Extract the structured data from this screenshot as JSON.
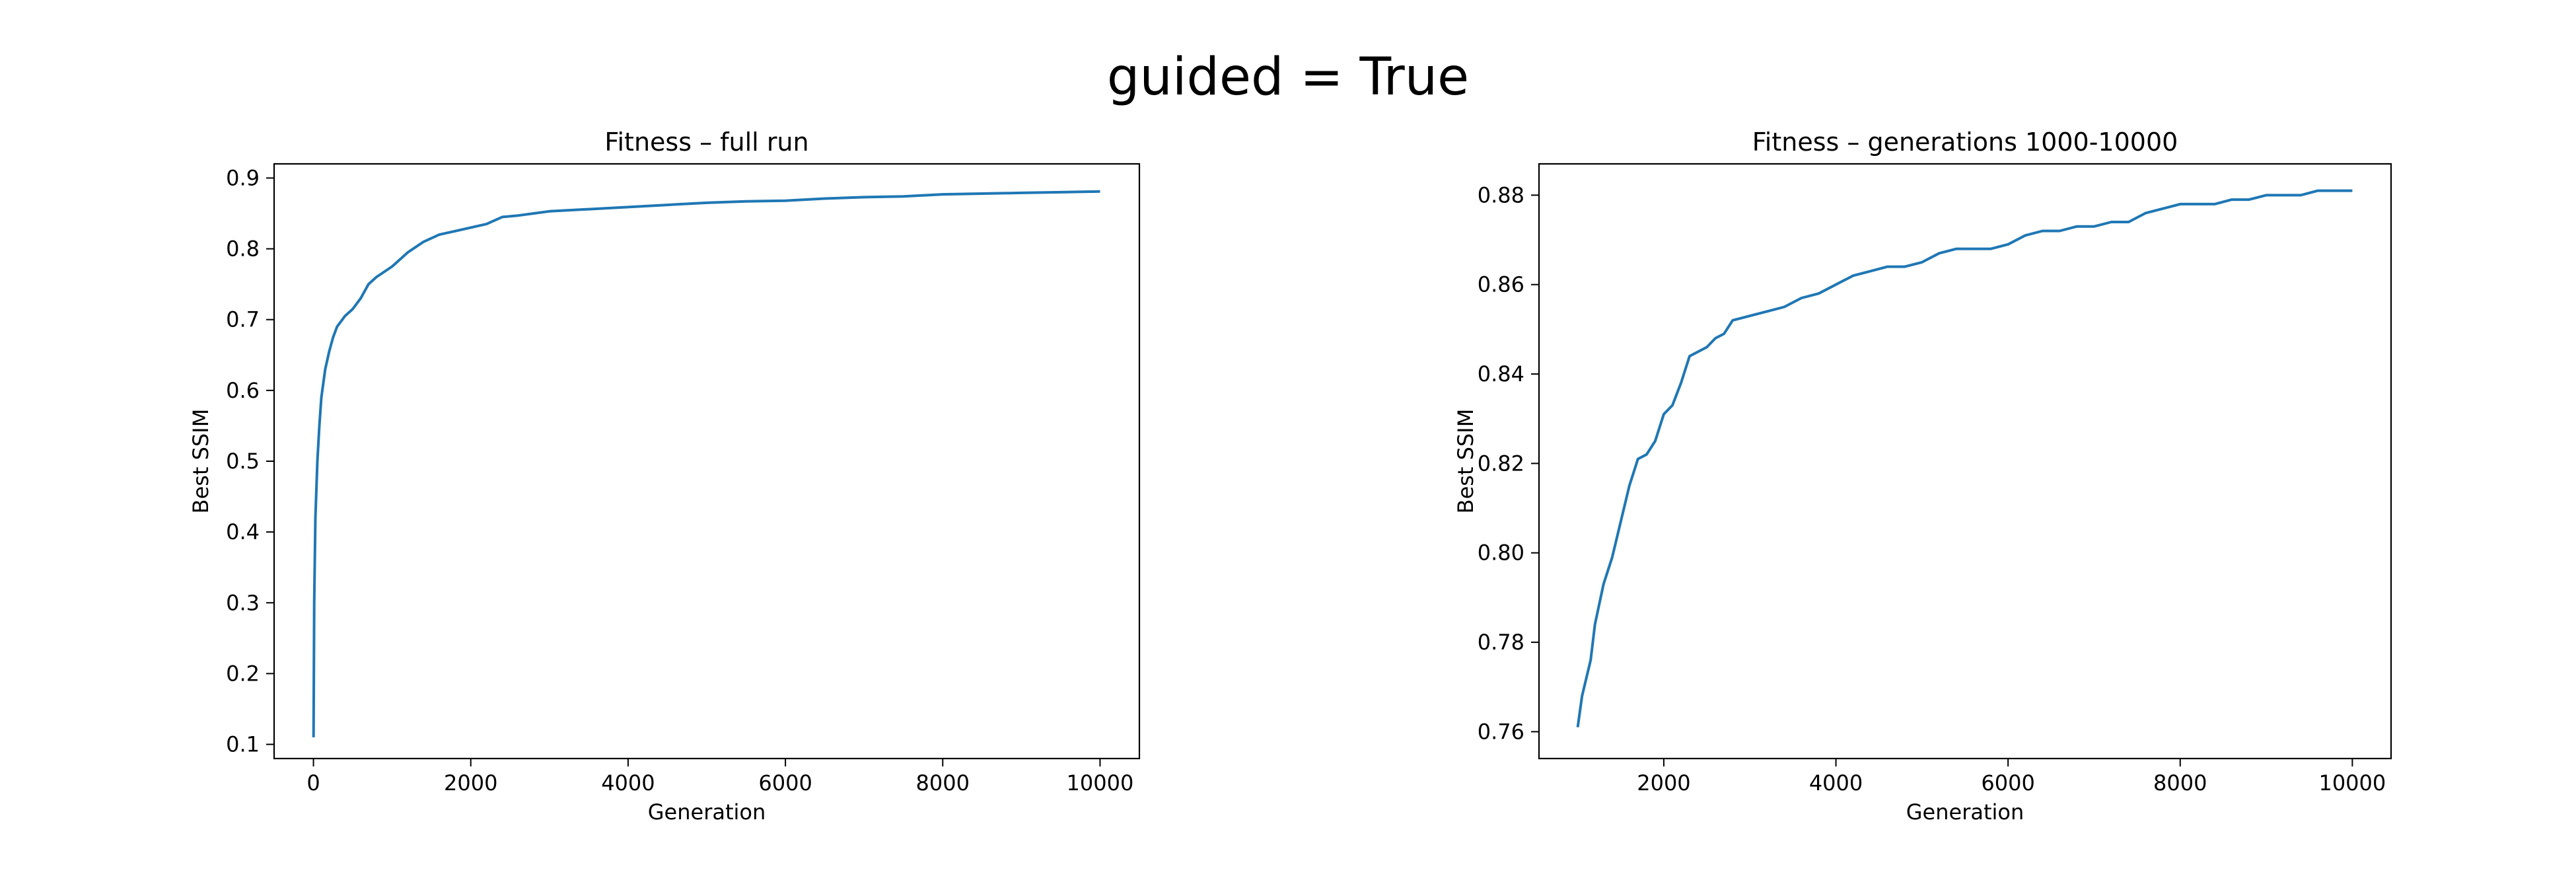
{
  "figure": {
    "suptitle": "guided = True"
  },
  "chart_data": [
    {
      "type": "line",
      "title": "Fitness – full run",
      "xlabel": "Generation",
      "ylabel": "Best SSIM",
      "xlim": [
        -500,
        10500
      ],
      "ylim": [
        0.08,
        0.92
      ],
      "xticks": [
        0,
        2000,
        4000,
        6000,
        8000,
        10000
      ],
      "yticks": [
        0.1,
        0.2,
        0.3,
        0.4,
        0.5,
        0.6,
        0.7,
        0.8,
        0.9
      ],
      "ytick_decimals": 1,
      "grid": false,
      "line_color": "#1f77b4",
      "series": [
        {
          "x": [
            1,
            10,
            25,
            50,
            75,
            100,
            150,
            200,
            250,
            300,
            400,
            500,
            600,
            700,
            800,
            1000,
            1200,
            1400,
            1600,
            1800,
            2000,
            2200,
            2400,
            2600,
            2800,
            3000,
            3500,
            4000,
            4500,
            5000,
            5500,
            6000,
            6500,
            7000,
            7500,
            8000,
            8500,
            9000,
            9500,
            10000
          ],
          "y": [
            0.11,
            0.3,
            0.42,
            0.5,
            0.55,
            0.59,
            0.63,
            0.655,
            0.675,
            0.69,
            0.705,
            0.715,
            0.73,
            0.75,
            0.76,
            0.775,
            0.795,
            0.81,
            0.82,
            0.825,
            0.83,
            0.835,
            0.845,
            0.847,
            0.85,
            0.853,
            0.856,
            0.859,
            0.862,
            0.865,
            0.867,
            0.868,
            0.871,
            0.873,
            0.874,
            0.877,
            0.878,
            0.879,
            0.88,
            0.881
          ]
        }
      ]
    },
    {
      "type": "line",
      "title": "Fitness – generations 1000-10000",
      "xlabel": "Generation",
      "ylabel": "Best SSIM",
      "xlim": [
        550,
        10450
      ],
      "ylim": [
        0.754,
        0.887
      ],
      "xticks": [
        2000,
        4000,
        6000,
        8000,
        10000
      ],
      "yticks": [
        0.76,
        0.78,
        0.8,
        0.82,
        0.84,
        0.86,
        0.88
      ],
      "ytick_decimals": 2,
      "grid": false,
      "line_color": "#1f77b4",
      "series": [
        {
          "x": [
            1000,
            1050,
            1100,
            1150,
            1200,
            1300,
            1400,
            1500,
            1600,
            1700,
            1800,
            1900,
            2000,
            2100,
            2200,
            2300,
            2400,
            2500,
            2600,
            2700,
            2800,
            3000,
            3200,
            3400,
            3600,
            3800,
            4000,
            4200,
            4400,
            4600,
            4800,
            5000,
            5200,
            5400,
            5600,
            5800,
            6000,
            6200,
            6400,
            6600,
            6800,
            7000,
            7200,
            7400,
            7600,
            7800,
            8000,
            8200,
            8400,
            8600,
            8800,
            9000,
            9200,
            9400,
            9600,
            9800,
            10000
          ],
          "y": [
            0.761,
            0.768,
            0.772,
            0.776,
            0.784,
            0.793,
            0.799,
            0.807,
            0.815,
            0.821,
            0.822,
            0.825,
            0.831,
            0.833,
            0.838,
            0.844,
            0.845,
            0.846,
            0.848,
            0.849,
            0.852,
            0.853,
            0.854,
            0.855,
            0.857,
            0.858,
            0.86,
            0.862,
            0.863,
            0.864,
            0.864,
            0.865,
            0.867,
            0.868,
            0.868,
            0.868,
            0.869,
            0.871,
            0.872,
            0.872,
            0.873,
            0.873,
            0.874,
            0.874,
            0.876,
            0.877,
            0.878,
            0.878,
            0.878,
            0.879,
            0.879,
            0.88,
            0.88,
            0.88,
            0.881,
            0.881,
            0.881
          ]
        }
      ]
    }
  ]
}
